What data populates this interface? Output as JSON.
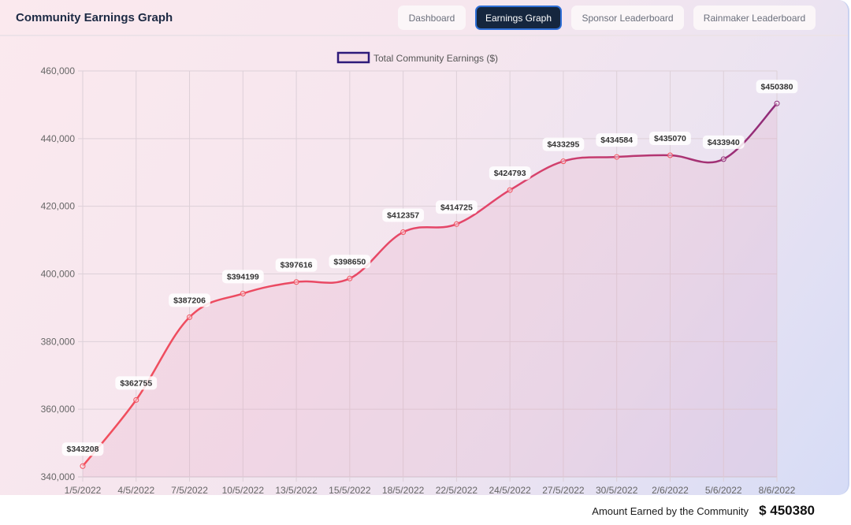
{
  "header": {
    "title": "Community Earnings Graph",
    "nav": [
      {
        "label": "Dashboard",
        "active": false
      },
      {
        "label": "Earnings Graph",
        "active": true
      },
      {
        "label": "Sponsor Leaderboard",
        "active": false
      },
      {
        "label": "Rainmaker Leaderboard",
        "active": false
      }
    ]
  },
  "chart_data": {
    "type": "line",
    "categories": [
      "1/5/2022",
      "4/5/2022",
      "7/5/2022",
      "10/5/2022",
      "13/5/2022",
      "15/5/2022",
      "18/5/2022",
      "22/5/2022",
      "24/5/2022",
      "27/5/2022",
      "30/5/2022",
      "2/6/2022",
      "5/6/2022",
      "8/6/2022"
    ],
    "series": [
      {
        "name": "Total Community Earnings ($)",
        "values": [
          343208,
          362755,
          387206,
          394199,
          397616,
          398650,
          412357,
          414725,
          424793,
          433295,
          434584,
          435070,
          433940,
          450380
        ]
      }
    ],
    "data_label_prefix": "$",
    "ylim": [
      340000,
      460000
    ],
    "yticks": [
      "340,000",
      "360,000",
      "380,000",
      "400,000",
      "420,000",
      "440,000",
      "460,000"
    ],
    "ytick_values": [
      340000,
      360000,
      380000,
      400000,
      420000,
      440000,
      460000
    ],
    "grid": true,
    "legend": "top-center",
    "fill": true,
    "smooth": true,
    "colors": {
      "line_start": "#f24f5c",
      "line_end": "#8e2a78",
      "legend_border": "#2e1a7a"
    }
  },
  "footer": {
    "label": "Amount Earned by the Community",
    "amount": "$ 450380"
  }
}
